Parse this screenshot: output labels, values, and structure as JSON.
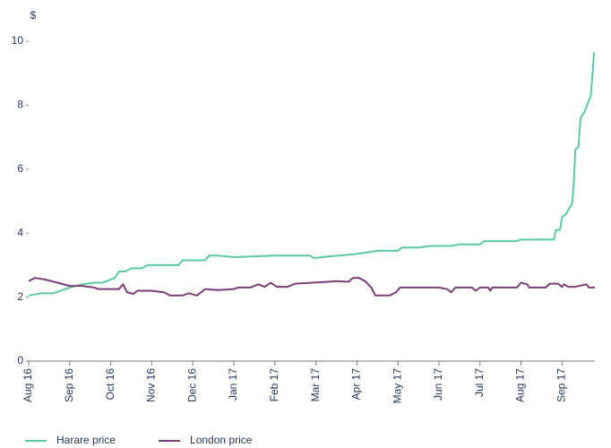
{
  "chart_data": {
    "type": "line",
    "y_label": "$",
    "xlim": [
      0,
      13.8
    ],
    "xticks": [
      {
        "value": 0,
        "label": "Aug 16"
      },
      {
        "value": 1,
        "label": "Sep 16"
      },
      {
        "value": 2,
        "label": "Oct 16"
      },
      {
        "value": 3,
        "label": "Nov 16"
      },
      {
        "value": 4,
        "label": "Dec 16"
      },
      {
        "value": 5,
        "label": "Jan 17"
      },
      {
        "value": 6,
        "label": "Feb 17"
      },
      {
        "value": 7,
        "label": "Mar 17"
      },
      {
        "value": 8,
        "label": "Apr 17"
      },
      {
        "value": 9,
        "label": "May 17"
      },
      {
        "value": 10,
        "label": "Jun 17"
      },
      {
        "value": 11,
        "label": "Jul 17"
      },
      {
        "value": 12,
        "label": "Aug 17"
      },
      {
        "value": 13,
        "label": "Sep 17"
      }
    ],
    "ylim": [
      0,
      10
    ],
    "yticks": [
      0,
      2,
      4,
      6,
      8,
      10
    ],
    "grid": false,
    "series": [
      {
        "name": "Harare price",
        "color": "#5cc9a3",
        "x": [
          0,
          0.3,
          0.6,
          1.0,
          1.3,
          1.6,
          1.8,
          2.0,
          2.1,
          2.2,
          2.35,
          2.5,
          2.75,
          2.9,
          3.5,
          3.65,
          3.75,
          4.3,
          4.4,
          4.6,
          5.0,
          6.0,
          6.5,
          6.85,
          6.95,
          7.3,
          8.0,
          8.5,
          9.0,
          9.1,
          9.5,
          9.8,
          10.3,
          10.5,
          11.0,
          11.1,
          11.9,
          12.0,
          12.8,
          12.85,
          12.95,
          13.0,
          13.1,
          13.25,
          13.3,
          13.32,
          13.4,
          13.45,
          13.55,
          13.7,
          13.75,
          13.78
        ],
        "values": [
          2.05,
          2.12,
          2.12,
          2.3,
          2.4,
          2.45,
          2.45,
          2.55,
          2.6,
          2.8,
          2.8,
          2.9,
          2.9,
          3.0,
          3.0,
          3.0,
          3.15,
          3.15,
          3.3,
          3.3,
          3.25,
          3.3,
          3.3,
          3.3,
          3.22,
          3.27,
          3.35,
          3.45,
          3.45,
          3.55,
          3.55,
          3.6,
          3.6,
          3.65,
          3.65,
          3.75,
          3.75,
          3.8,
          3.8,
          4.1,
          4.1,
          4.5,
          4.6,
          4.95,
          5.9,
          6.6,
          6.7,
          7.6,
          7.8,
          8.3,
          9.1,
          9.65
        ]
      },
      {
        "name": "London price",
        "color": "#7a3e78",
        "x": [
          0,
          0.15,
          0.4,
          0.7,
          1.0,
          1.3,
          1.6,
          1.7,
          2.2,
          2.3,
          2.4,
          2.55,
          2.65,
          3.0,
          3.3,
          3.45,
          3.75,
          3.9,
          4.1,
          4.3,
          4.6,
          5.0,
          5.1,
          5.4,
          5.6,
          5.75,
          5.9,
          6.05,
          6.3,
          6.5,
          7.3,
          7.5,
          7.8,
          7.9,
          8.05,
          8.2,
          8.35,
          8.45,
          8.8,
          8.95,
          9.05,
          10.0,
          10.2,
          10.3,
          10.4,
          10.8,
          10.9,
          11.0,
          11.2,
          11.25,
          11.3,
          11.5,
          11.9,
          12.0,
          12.15,
          12.2,
          12.6,
          12.7,
          12.9,
          13.0,
          13.05,
          13.15,
          13.3,
          13.6,
          13.65,
          13.8
        ],
        "values": [
          2.5,
          2.6,
          2.55,
          2.45,
          2.35,
          2.35,
          2.3,
          2.25,
          2.25,
          2.4,
          2.15,
          2.1,
          2.2,
          2.2,
          2.15,
          2.05,
          2.05,
          2.12,
          2.05,
          2.25,
          2.22,
          2.25,
          2.3,
          2.3,
          2.4,
          2.32,
          2.45,
          2.32,
          2.32,
          2.42,
          2.48,
          2.5,
          2.48,
          2.6,
          2.6,
          2.5,
          2.3,
          2.05,
          2.05,
          2.15,
          2.3,
          2.3,
          2.25,
          2.15,
          2.3,
          2.3,
          2.2,
          2.3,
          2.3,
          2.2,
          2.3,
          2.3,
          2.3,
          2.45,
          2.4,
          2.3,
          2.3,
          2.42,
          2.42,
          2.32,
          2.4,
          2.32,
          2.32,
          2.4,
          2.3,
          2.3
        ]
      }
    ]
  }
}
